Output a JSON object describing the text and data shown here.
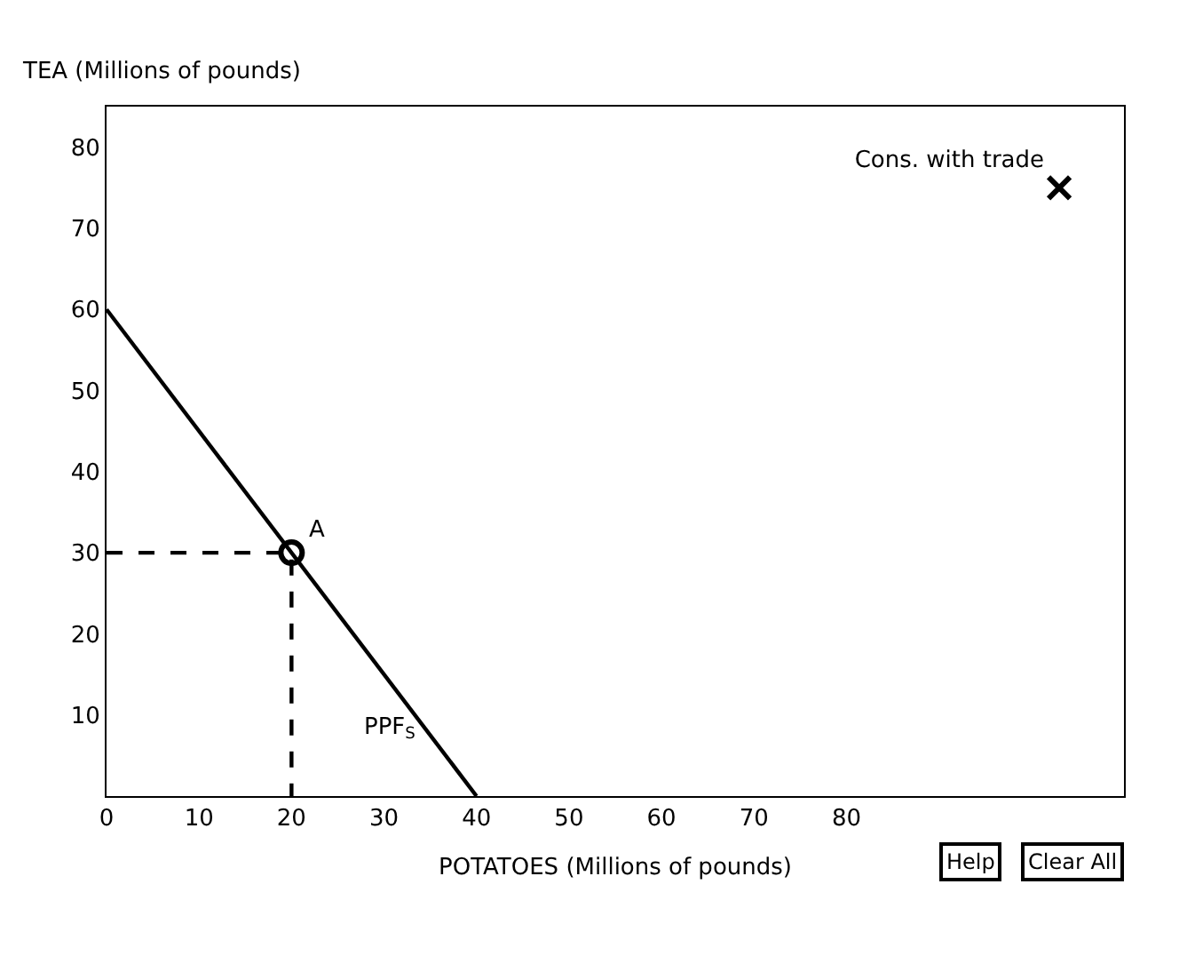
{
  "chart_data": {
    "type": "line",
    "xlabel": "POTATOES (Millions of pounds)",
    "ylabel": "TEA (Millions of pounds)",
    "xlim": [
      0,
      110
    ],
    "ylim": [
      0,
      85
    ],
    "xticks": [
      0,
      10,
      20,
      30,
      40,
      50,
      60,
      70,
      80
    ],
    "yticks": [
      10,
      20,
      30,
      40,
      50,
      60,
      70,
      80
    ],
    "series": [
      {
        "color": "#000000",
        "x": [
          0,
          40
        ],
        "values": [
          60,
          0
        ],
        "line_style": "solid",
        "marker": "none"
      },
      {
        "color": "#000000",
        "x": [
          0,
          20,
          20
        ],
        "values": [
          30,
          30,
          0
        ],
        "line_style": "dashed",
        "marker": "none"
      },
      {
        "type": "scatter",
        "color": "#000000",
        "x": [
          20
        ],
        "values": [
          30
        ],
        "marker": "circle"
      },
      {
        "type": "scatter",
        "name": "Cons. with trade",
        "color": "#000000",
        "x": [
          103
        ],
        "values": [
          75
        ],
        "marker": "cross"
      }
    ],
    "annotations": [
      "A",
      "PPF$_{S}$",
      "Help",
      "Clear All"
    ]
  }
}
